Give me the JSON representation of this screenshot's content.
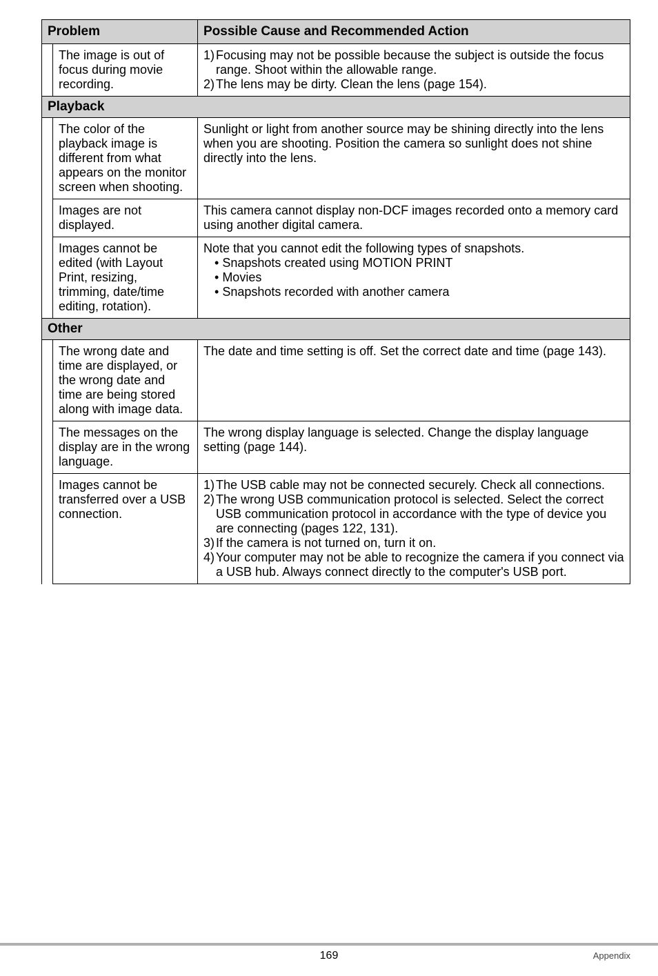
{
  "header": {
    "problem": "Problem",
    "action": "Possible Cause and Recommended Action"
  },
  "rows": {
    "r1": {
      "problem": "The image is out of focus during movie recording.",
      "a1n": "1)",
      "a1t": "Focusing may not be possible because the subject is outside the focus range. Shoot within the allowable range.",
      "a2n": "2)",
      "a2t": "The lens may be dirty. Clean the lens (page 154)."
    },
    "section_playback": "Playback",
    "r2": {
      "problem": "The color of the playback image is different from what appears on the monitor screen when shooting.",
      "action": "Sunlight or light from another source may be shining directly into the lens when you are shooting. Position the camera so sunlight does not shine directly into the lens."
    },
    "r3": {
      "problem": "Images are not displayed.",
      "action": "This camera cannot display non-DCF images recorded onto a memory card using another digital camera."
    },
    "r4": {
      "problem": "Images cannot be edited (with Layout Print, resizing, trimming, date/time editing, rotation).",
      "lead": "Note that you cannot edit the following types of snapshots.",
      "b1": "Snapshots created using MOTION PRINT",
      "b2": "Movies",
      "b3": "Snapshots recorded with another camera"
    },
    "section_other": "Other",
    "r5": {
      "problem": "The wrong date and time are displayed, or the wrong date and time are being stored along with image data.",
      "action": "The date and time setting is off. Set the correct date and time (page 143)."
    },
    "r6": {
      "problem": "The messages on the display are in the wrong language.",
      "action": "The wrong display language is selected. Change the display language setting (page 144)."
    },
    "r7": {
      "problem": "Images cannot be transferred over a USB connection.",
      "a1n": "1)",
      "a1t": "The USB cable may not be connected securely. Check all connections.",
      "a2n": "2)",
      "a2t": "The wrong USB communication protocol is selected. Select the correct USB communication protocol in accordance with the type of device you are connecting (pages 122, 131).",
      "a3n": "3)",
      "a3t": "If the camera is not turned on, turn it on.",
      "a4n": "4)",
      "a4t": "Your computer may not be able to recognize the camera if you connect via a USB hub. Always connect directly to the computer's USB port."
    }
  },
  "footer": {
    "page": "169",
    "section": "Appendix"
  }
}
